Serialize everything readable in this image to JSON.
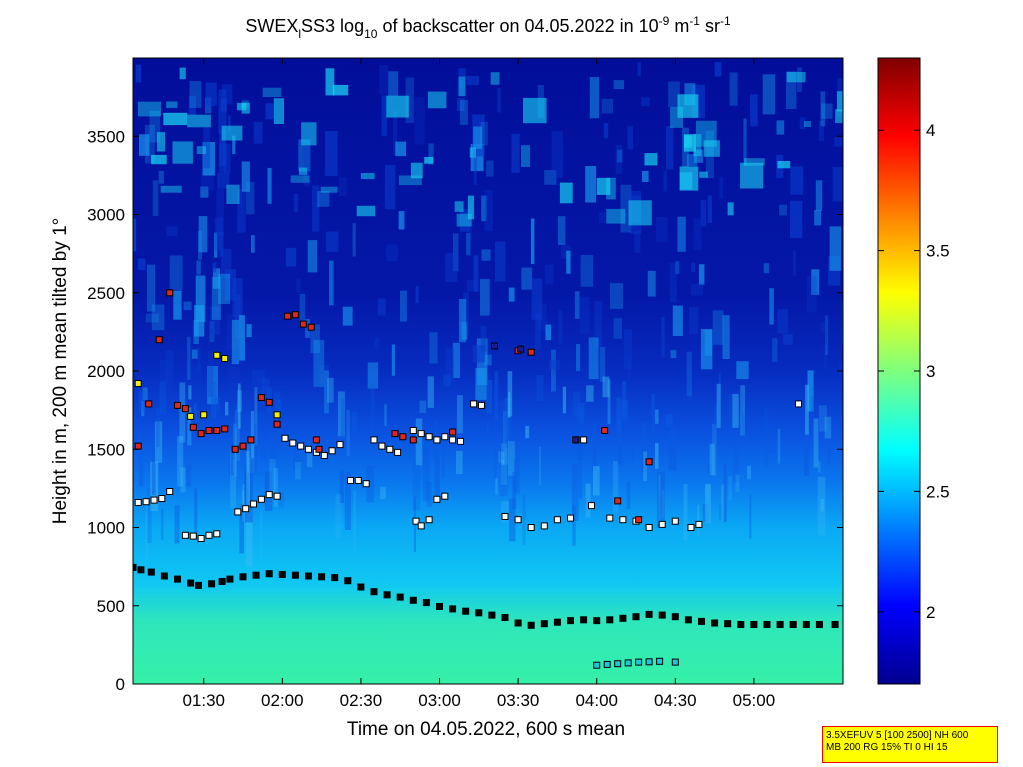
{
  "chart_data": {
    "type": "heatmap",
    "title_parts": {
      "pre": "SWEX",
      "sub1": "l",
      "mid": "SS3 log",
      "sub2": "10",
      "post": " of backscatter on 04.05.2022 in 10",
      "sup1": "-9",
      "unit1": " m",
      "sup2": "-1",
      "unit2": " sr",
      "sup3": "-1"
    },
    "xlabel": "Time on 04.05.2022, 600 s mean",
    "ylabel": "Height in m, 200 m mean tilted by 1°",
    "x_ticks": [
      "01:30",
      "02:00",
      "02:30",
      "03:00",
      "03:30",
      "04:00",
      "04:30",
      "05:00"
    ],
    "x_tick_minutes": [
      90,
      120,
      150,
      180,
      210,
      240,
      270,
      300
    ],
    "xlim_minutes": [
      63,
      334
    ],
    "y_ticks": [
      "0",
      "500",
      "1000",
      "1500",
      "2000",
      "2500",
      "3000",
      "3500"
    ],
    "y_tick_values": [
      0,
      500,
      1000,
      1500,
      2000,
      2500,
      3000,
      3500
    ],
    "ylim": [
      0,
      4000
    ],
    "colorbar": {
      "ticks": [
        "2",
        "2.5",
        "3",
        "3.5",
        "4"
      ],
      "tick_values": [
        2,
        2.5,
        3,
        3.5,
        4
      ],
      "range": [
        1.7,
        4.3
      ],
      "colormap": "jet"
    },
    "backscatter_bands": [
      {
        "from_m": 0,
        "to_m": 600,
        "log10_value": 2.75
      },
      {
        "from_m": 600,
        "to_m": 1200,
        "log10_value": 2.45
      },
      {
        "from_m": 1200,
        "to_m": 2000,
        "log10_value": 2.2
      },
      {
        "from_m": 2000,
        "to_m": 4000,
        "log10_value": 1.8
      }
    ],
    "layer_series": [
      {
        "marker_color": "#000000",
        "points": [
          [
            63,
            745
          ],
          [
            66,
            730
          ],
          [
            70,
            715
          ],
          [
            75,
            690
          ],
          [
            80,
            670
          ],
          [
            85,
            645
          ],
          [
            88,
            630
          ],
          [
            93,
            640
          ],
          [
            97,
            655
          ],
          [
            100,
            670
          ],
          [
            105,
            685
          ],
          [
            110,
            695
          ],
          [
            115,
            705
          ],
          [
            120,
            700
          ],
          [
            125,
            695
          ],
          [
            130,
            690
          ],
          [
            135,
            685
          ],
          [
            140,
            680
          ],
          [
            145,
            660
          ],
          [
            150,
            620
          ],
          [
            155,
            590
          ],
          [
            160,
            570
          ],
          [
            165,
            555
          ],
          [
            170,
            535
          ],
          [
            175,
            520
          ],
          [
            180,
            495
          ],
          [
            185,
            480
          ],
          [
            190,
            465
          ],
          [
            195,
            455
          ],
          [
            200,
            440
          ],
          [
            205,
            425
          ],
          [
            210,
            390
          ],
          [
            215,
            375
          ],
          [
            220,
            385
          ],
          [
            225,
            395
          ],
          [
            230,
            405
          ],
          [
            235,
            410
          ],
          [
            240,
            405
          ],
          [
            245,
            410
          ],
          [
            250,
            420
          ],
          [
            255,
            430
          ],
          [
            260,
            445
          ],
          [
            265,
            440
          ],
          [
            270,
            430
          ],
          [
            275,
            410
          ],
          [
            280,
            400
          ],
          [
            285,
            390
          ],
          [
            290,
            385
          ],
          [
            295,
            380
          ],
          [
            300,
            380
          ],
          [
            305,
            380
          ],
          [
            310,
            380
          ],
          [
            315,
            380
          ],
          [
            320,
            380
          ],
          [
            325,
            380
          ],
          [
            331,
            380
          ]
        ]
      },
      {
        "marker_color": "#1ec8dc",
        "points": [
          [
            240,
            120
          ],
          [
            244,
            125
          ],
          [
            248,
            130
          ],
          [
            252,
            135
          ],
          [
            256,
            140
          ],
          [
            260,
            142
          ],
          [
            264,
            145
          ],
          [
            270,
            140
          ]
        ]
      },
      {
        "marker_color": "#ffffff",
        "points": [
          [
            65,
            1160
          ],
          [
            68,
            1165
          ],
          [
            71,
            1175
          ],
          [
            74,
            1185
          ],
          [
            77,
            1230
          ],
          [
            83,
            950
          ],
          [
            86,
            945
          ],
          [
            89,
            930
          ],
          [
            92,
            950
          ],
          [
            95,
            960
          ],
          [
            103,
            1100
          ],
          [
            106,
            1120
          ],
          [
            109,
            1150
          ],
          [
            112,
            1180
          ],
          [
            115,
            1210
          ],
          [
            118,
            1200
          ],
          [
            121,
            1570
          ],
          [
            124,
            1540
          ],
          [
            127,
            1520
          ],
          [
            130,
            1500
          ],
          [
            133,
            1480
          ],
          [
            136,
            1460
          ],
          [
            139,
            1490
          ],
          [
            142,
            1530
          ],
          [
            146,
            1300
          ],
          [
            149,
            1300
          ],
          [
            152,
            1280
          ],
          [
            155,
            1560
          ],
          [
            158,
            1520
          ],
          [
            161,
            1500
          ],
          [
            164,
            1480
          ],
          [
            170,
            1620
          ],
          [
            173,
            1600
          ],
          [
            176,
            1580
          ],
          [
            179,
            1560
          ],
          [
            182,
            1580
          ],
          [
            185,
            1560
          ],
          [
            188,
            1550
          ],
          [
            171,
            1040
          ],
          [
            173,
            1010
          ],
          [
            176,
            1050
          ],
          [
            179,
            1180
          ],
          [
            182,
            1200
          ],
          [
            193,
            1790
          ],
          [
            196,
            1780
          ],
          [
            205,
            1070
          ],
          [
            210,
            1050
          ],
          [
            215,
            1000
          ],
          [
            220,
            1010
          ],
          [
            225,
            1050
          ],
          [
            230,
            1060
          ],
          [
            232,
            1560
          ],
          [
            235,
            1560
          ],
          [
            238,
            1140
          ],
          [
            245,
            1060
          ],
          [
            250,
            1050
          ],
          [
            255,
            1040
          ],
          [
            260,
            1000
          ],
          [
            265,
            1020
          ],
          [
            270,
            1040
          ],
          [
            276,
            1000
          ],
          [
            279,
            1020
          ],
          [
            317,
            1790
          ]
        ]
      },
      {
        "marker_color": "#e0261d",
        "points": [
          [
            65,
            1520
          ],
          [
            69,
            1790
          ],
          [
            73,
            2200
          ],
          [
            77,
            2500
          ],
          [
            80,
            1780
          ],
          [
            83,
            1760
          ],
          [
            86,
            1640
          ],
          [
            89,
            1600
          ],
          [
            92,
            1620
          ],
          [
            95,
            1620
          ],
          [
            98,
            1630
          ],
          [
            102,
            1500
          ],
          [
            105,
            1520
          ],
          [
            108,
            1560
          ],
          [
            112,
            1830
          ],
          [
            115,
            1800
          ],
          [
            118,
            1660
          ],
          [
            122,
            2350
          ],
          [
            125,
            2360
          ],
          [
            128,
            2300
          ],
          [
            131,
            2280
          ],
          [
            133,
            1560
          ],
          [
            134,
            1500
          ],
          [
            163,
            1600
          ],
          [
            166,
            1580
          ],
          [
            170,
            1560
          ],
          [
            185,
            1610
          ],
          [
            210,
            2130
          ],
          [
            215,
            2120
          ],
          [
            243,
            1620
          ],
          [
            248,
            1170
          ],
          [
            256,
            1050
          ],
          [
            260,
            1420
          ]
        ]
      },
      {
        "marker_color": "#f5f000",
        "points": [
          [
            65,
            1920
          ],
          [
            95,
            2100
          ],
          [
            98,
            2080
          ],
          [
            85,
            1710
          ],
          [
            90,
            1720
          ],
          [
            118,
            1720
          ]
        ]
      },
      {
        "marker_color": "#1a1a8c",
        "points": [
          [
            201,
            2160
          ],
          [
            211,
            2140
          ],
          [
            232,
            1560
          ]
        ]
      }
    ],
    "annotation_lines": [
      "3.5XEFUV 5 [100 2500] NH 600",
      "MB 200 RG 15% TI 0 HI 15"
    ]
  }
}
